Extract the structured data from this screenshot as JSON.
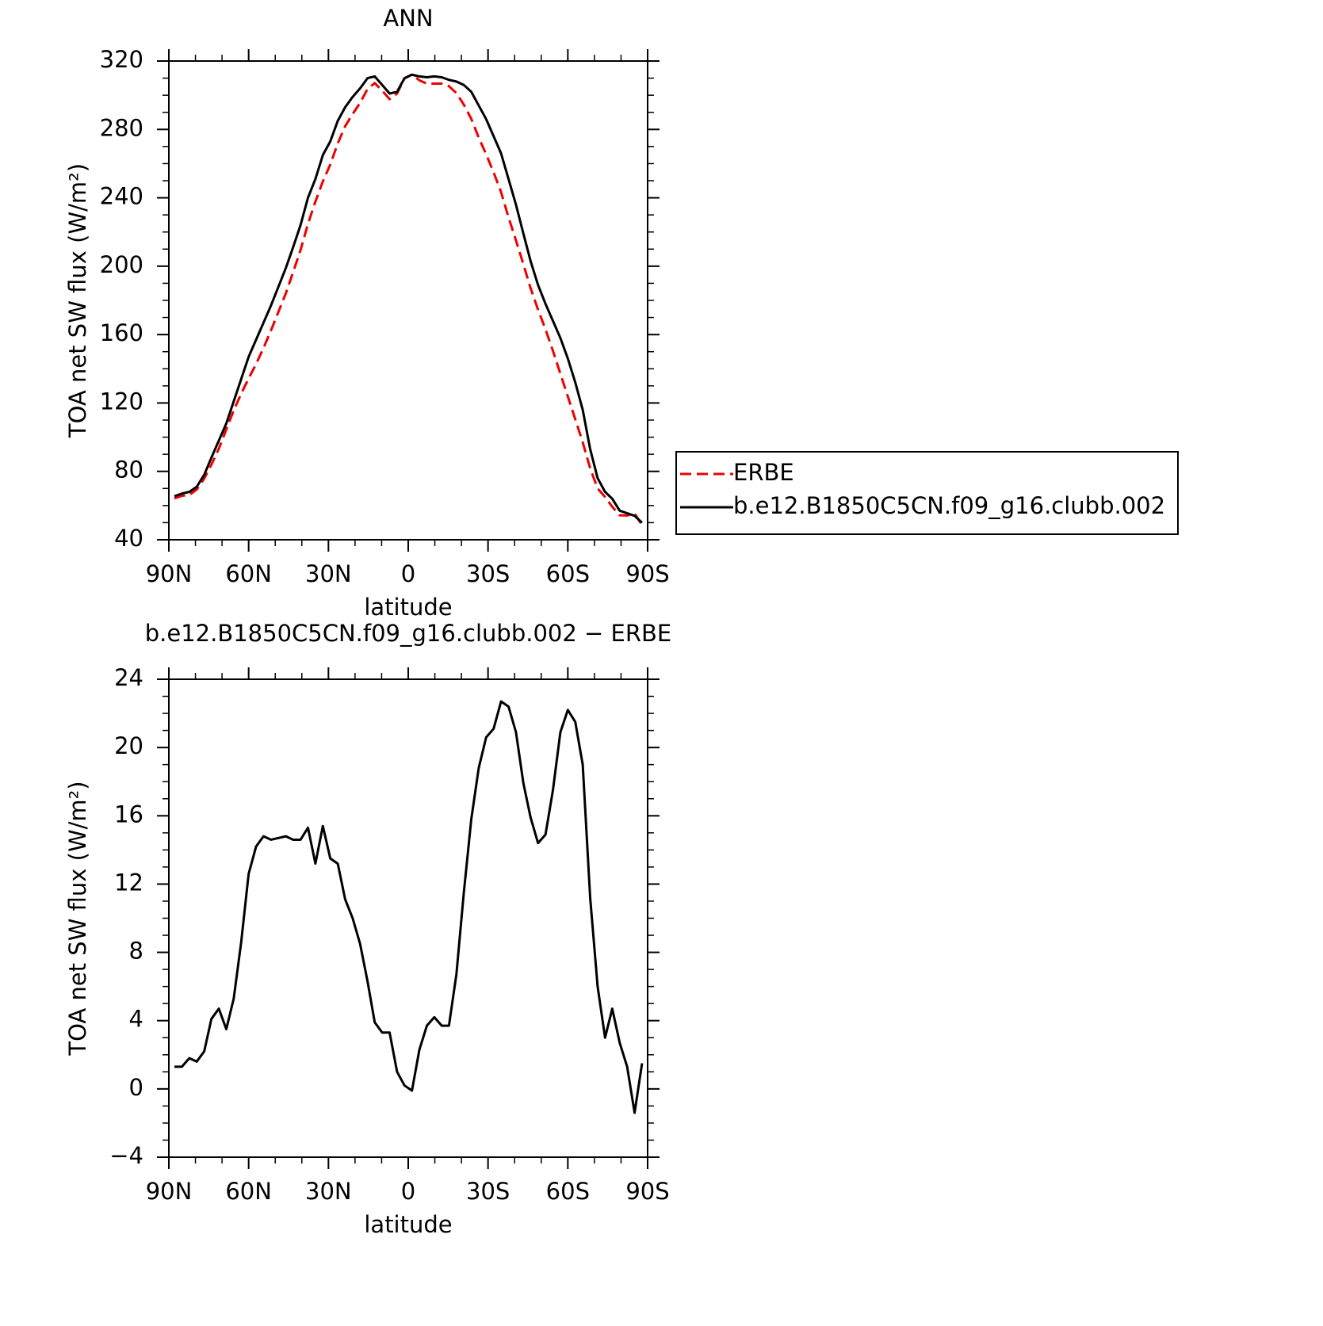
{
  "chart_data": [
    {
      "type": "line",
      "title": "ANN",
      "xlabel": "latitude",
      "ylabel": "TOA net SW flux (W/m²)",
      "x": [
        87.9,
        85.1,
        82.3,
        79.5,
        76.7,
        74.0,
        71.2,
        68.4,
        65.6,
        62.8,
        60.0,
        57.2,
        54.4,
        51.6,
        48.8,
        46.0,
        43.3,
        40.5,
        37.7,
        34.9,
        32.1,
        29.3,
        26.5,
        23.7,
        20.9,
        18.1,
        15.3,
        12.6,
        9.8,
        7.0,
        4.2,
        1.4,
        -1.4,
        -4.2,
        -7.0,
        -9.8,
        -12.6,
        -15.3,
        -18.1,
        -20.9,
        -23.7,
        -26.5,
        -29.3,
        -32.1,
        -34.9,
        -37.7,
        -40.5,
        -43.3,
        -46.0,
        -48.8,
        -51.6,
        -54.4,
        -57.2,
        -60.0,
        -62.8,
        -65.6,
        -68.4,
        -71.2,
        -74.0,
        -76.7,
        -79.5,
        -82.3,
        -85.1,
        -87.9
      ],
      "series": [
        {
          "name": "ERBE",
          "color": "#ee0000",
          "line_style": "dashed",
          "values": [
            64.2,
            65.7,
            66.2,
            69.4,
            75.8,
            83.9,
            93.3,
            104.5,
            115.7,
            125.4,
            134.4,
            142.8,
            152.2,
            162.4,
            173.3,
            184.2,
            196.4,
            209.4,
            224.7,
            237.8,
            249.6,
            259.5,
            271.8,
            281.9,
            289.0,
            295.5,
            303.7,
            307.1,
            302.7,
            297.7,
            301.0,
            309.8,
            312.1,
            308.7,
            306.8,
            306.8,
            306.8,
            305.3,
            301.3,
            294.5,
            286.2,
            275.2,
            265.4,
            254.9,
            243.3,
            228.6,
            215.1,
            201.1,
            187.1,
            174.6,
            163.1,
            150.5,
            137.1,
            123.8,
            110.5,
            97.0,
            81.8,
            70.0,
            65.0,
            59.3,
            54.3,
            54.2,
            55.4,
            48.5
          ]
        },
        {
          "name": "b.e12.B1850C5CN.f09_g16.clubb.002",
          "color": "#000000",
          "line_style": "solid",
          "values": [
            65.5,
            67,
            68,
            71,
            78,
            88,
            98,
            108,
            121,
            134,
            147,
            157,
            167,
            177,
            188,
            199,
            211,
            224,
            240,
            251,
            265,
            273,
            285,
            293,
            299,
            304,
            310,
            311,
            306,
            301,
            302,
            310,
            312,
            311,
            310.5,
            311,
            310.5,
            309,
            308,
            306,
            302,
            294,
            286,
            276,
            266,
            251,
            236,
            219,
            203,
            189,
            178,
            168,
            158,
            146,
            132,
            116,
            93,
            76,
            68,
            64,
            57,
            55.5,
            54,
            50
          ]
        }
      ],
      "xlim": [
        90,
        -90
      ],
      "xticks": [
        {
          "value": 90,
          "label": "90N"
        },
        {
          "value": 60,
          "label": "60N"
        },
        {
          "value": 30,
          "label": "30N"
        },
        0,
        {
          "value": -30,
          "label": "30S"
        },
        {
          "value": -60,
          "label": "60S"
        },
        {
          "value": -90,
          "label": "90S"
        }
      ],
      "ylim": [
        40,
        320
      ],
      "yticks": [
        40,
        80,
        120,
        160,
        200,
        240,
        280,
        320
      ],
      "legend": "outside right",
      "grid": false
    },
    {
      "type": "line",
      "title": "b.e12.B1850C5CN.f09_g16.clubb.002 − ERBE",
      "xlabel": "latitude",
      "ylabel": "TOA net SW flux (W/m²)",
      "x": [
        87.9,
        85.1,
        82.3,
        79.5,
        76.7,
        74.0,
        71.2,
        68.4,
        65.6,
        62.8,
        60.0,
        57.2,
        54.4,
        51.6,
        48.8,
        46.0,
        43.3,
        40.5,
        37.7,
        34.9,
        32.1,
        29.3,
        26.5,
        23.7,
        20.9,
        18.1,
        15.3,
        12.6,
        9.8,
        7.0,
        4.2,
        1.4,
        -1.4,
        -4.2,
        -7.0,
        -9.8,
        -12.6,
        -15.3,
        -18.1,
        -20.9,
        -23.7,
        -26.5,
        -29.3,
        -32.1,
        -34.9,
        -37.7,
        -40.5,
        -43.3,
        -46.0,
        -48.8,
        -51.6,
        -54.4,
        -57.2,
        -60.0,
        -62.8,
        -65.6,
        -68.4,
        -71.2,
        -74.0,
        -76.7,
        -79.5,
        -82.3,
        -85.1,
        -87.9
      ],
      "values": [
        1.3,
        1.3,
        1.8,
        1.6,
        2.2,
        4.1,
        4.7,
        3.5,
        5.3,
        8.6,
        12.6,
        14.2,
        14.8,
        14.6,
        14.7,
        14.8,
        14.6,
        14.6,
        15.3,
        13.2,
        15.4,
        13.5,
        13.2,
        11.1,
        10.0,
        8.5,
        6.3,
        3.9,
        3.3,
        3.3,
        1.0,
        0.2,
        -0.1,
        2.3,
        3.7,
        4.2,
        3.7,
        3.7,
        6.7,
        11.5,
        15.8,
        18.8,
        20.6,
        21.1,
        22.7,
        22.4,
        20.9,
        17.9,
        15.9,
        14.4,
        14.9,
        17.5,
        20.9,
        22.2,
        21.5,
        19.0,
        11.2,
        6.0,
        3.0,
        4.7,
        2.7,
        1.3,
        -1.4,
        1.5
      ],
      "color": "#000000",
      "xlim": [
        90,
        -90
      ],
      "xticks": [
        {
          "value": 90,
          "label": "90N"
        },
        {
          "value": 60,
          "label": "60N"
        },
        {
          "value": 30,
          "label": "30N"
        },
        0,
        {
          "value": -30,
          "label": "30S"
        },
        {
          "value": -60,
          "label": "60S"
        },
        {
          "value": -90,
          "label": "90S"
        }
      ],
      "ylim": [
        -4,
        24
      ],
      "yticks": [
        {
          "value": -4,
          "label": "−4"
        },
        0,
        4,
        8,
        12,
        16,
        20,
        24
      ],
      "grid": false
    }
  ]
}
